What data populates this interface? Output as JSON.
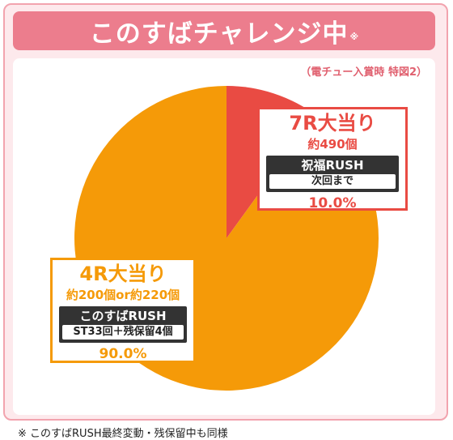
{
  "header": {
    "title": "このすばチャレンジ中",
    "title_mark": "※"
  },
  "source_note": "（電チュー入賞時 特図2）",
  "chart_data": {
    "type": "pie",
    "title": "このすばチャレンジ中",
    "slices": [
      {
        "label": "7R大当り",
        "count": "約490個",
        "mode": "祝福RUSH",
        "detail": "次回まで",
        "value": 10.0,
        "value_label": "10.0%",
        "color": "#e94b43"
      },
      {
        "label": "4R大当り",
        "count": "約200個or約220個",
        "mode": "このすばRUSH",
        "detail": "ST33回＋残保留4個",
        "value": 90.0,
        "value_label": "90.0%",
        "color": "#f59a08"
      }
    ]
  },
  "footnote": "※ このすばRUSH最終変動・残保留中も同様"
}
